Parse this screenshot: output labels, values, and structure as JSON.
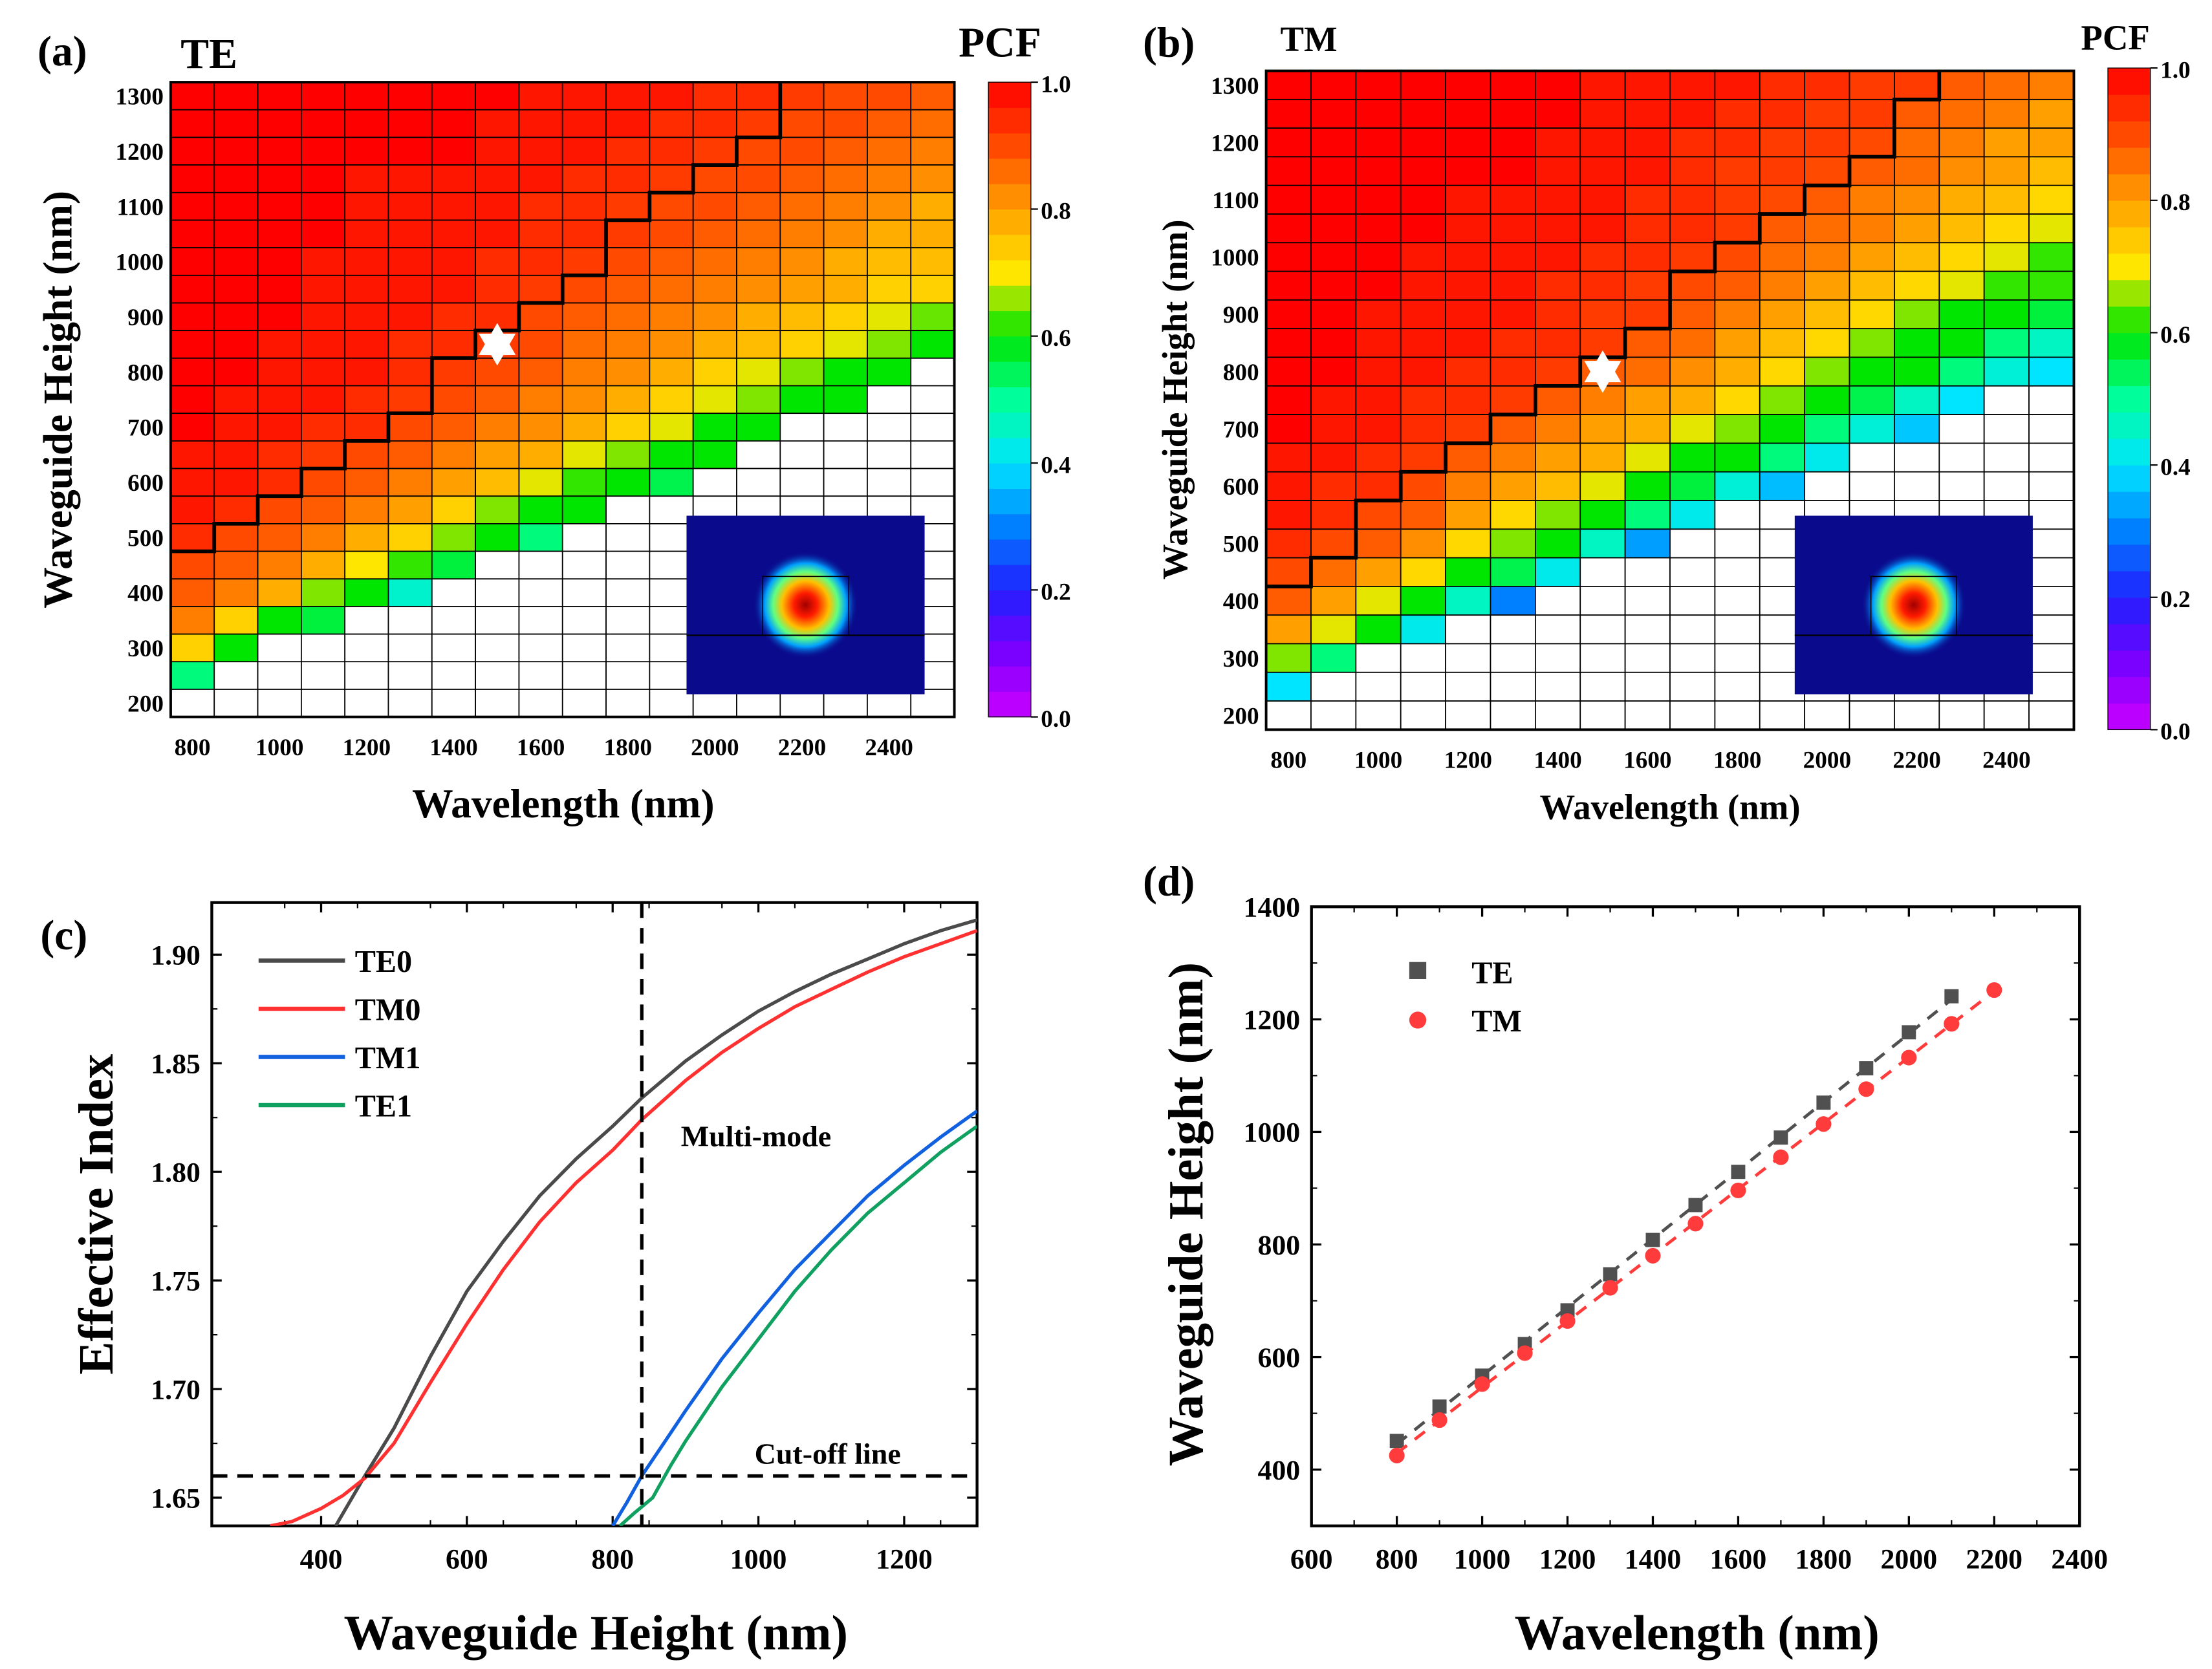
{
  "chart_data": [
    {
      "type": "heatmap",
      "panel_label": "(a)",
      "title": "TE",
      "colorbar_label": "PCF",
      "colorbar_ticks": [
        "0.0",
        "0.2",
        "0.4",
        "0.6",
        "0.8",
        "1.0"
      ],
      "clim": [
        0,
        1
      ],
      "xlabel": "Wavelength (nm)",
      "ylabel": "Waveguide Height (nm)",
      "xticks": [
        800,
        1000,
        1200,
        1400,
        1600,
        1800,
        2000,
        2200,
        2400
      ],
      "yticks": [
        200,
        300,
        400,
        500,
        600,
        700,
        800,
        900,
        1000,
        1100,
        1200,
        1300
      ],
      "x": [
        800,
        900,
        1000,
        1100,
        1200,
        1300,
        1400,
        1500,
        1600,
        1700,
        1800,
        1900,
        2000,
        2100,
        2200,
        2300,
        2400,
        2500
      ],
      "y": [
        1300,
        1250,
        1200,
        1150,
        1100,
        1050,
        1000,
        950,
        900,
        850,
        800,
        750,
        700,
        650,
        600,
        550,
        500,
        450,
        400,
        350,
        300,
        250,
        200
      ],
      "z_note": "rows listed top to bottom; missing trailing values are blank (white) cells",
      "z": [
        [
          1,
          1,
          1,
          1,
          1,
          1,
          1,
          1,
          0.97,
          0.97,
          0.97,
          0.97,
          0.94,
          0.94,
          0.92,
          0.9,
          0.9,
          0.88
        ],
        [
          1,
          1,
          1,
          1,
          1,
          1,
          1,
          0.97,
          0.97,
          0.97,
          0.97,
          0.94,
          0.94,
          0.92,
          0.9,
          0.9,
          0.88,
          0.86
        ],
        [
          1,
          1,
          1,
          1,
          1,
          1,
          1,
          0.97,
          0.97,
          0.97,
          0.94,
          0.94,
          0.92,
          0.9,
          0.9,
          0.88,
          0.86,
          0.84
        ],
        [
          1,
          1,
          1,
          1,
          0.97,
          0.97,
          0.97,
          0.97,
          0.97,
          0.94,
          0.94,
          0.92,
          0.9,
          0.9,
          0.88,
          0.86,
          0.84,
          0.82
        ],
        [
          1,
          1,
          1,
          1,
          0.97,
          0.97,
          0.97,
          0.97,
          0.94,
          0.94,
          0.92,
          0.9,
          0.9,
          0.88,
          0.86,
          0.84,
          0.82,
          0.78
        ],
        [
          1,
          1,
          1,
          1,
          0.97,
          0.97,
          0.97,
          0.97,
          0.94,
          0.94,
          0.92,
          0.9,
          0.88,
          0.86,
          0.84,
          0.82,
          0.78,
          0.78
        ],
        [
          1,
          1,
          1,
          0.97,
          0.97,
          0.97,
          0.97,
          0.94,
          0.94,
          0.92,
          0.9,
          0.88,
          0.86,
          0.84,
          0.82,
          0.78,
          0.76,
          0.76
        ],
        [
          1,
          1,
          1,
          0.97,
          0.97,
          0.97,
          0.97,
          0.94,
          0.92,
          0.9,
          0.88,
          0.86,
          0.84,
          0.82,
          0.8,
          0.78,
          0.73,
          0.73
        ],
        [
          1,
          1,
          1,
          0.97,
          0.97,
          0.97,
          0.94,
          0.94,
          0.9,
          0.88,
          0.86,
          0.84,
          0.82,
          0.78,
          0.76,
          0.73,
          0.69,
          0.64
        ],
        [
          1,
          1,
          0.97,
          0.97,
          0.97,
          0.94,
          0.94,
          0.92,
          0.9,
          0.86,
          0.84,
          0.82,
          0.78,
          0.76,
          0.73,
          0.69,
          0.65,
          0.6
        ],
        [
          1,
          1,
          0.97,
          0.97,
          0.97,
          0.94,
          0.92,
          0.9,
          0.88,
          0.84,
          0.82,
          0.78,
          0.73,
          0.69,
          0.65,
          0.6,
          0.6
        ],
        [
          1,
          0.97,
          0.97,
          0.97,
          0.94,
          0.92,
          0.9,
          0.88,
          0.84,
          0.82,
          0.78,
          0.73,
          0.69,
          0.65,
          0.6,
          0.6
        ],
        [
          1,
          0.97,
          0.97,
          0.94,
          0.94,
          0.9,
          0.88,
          0.84,
          0.82,
          0.78,
          0.73,
          0.69,
          0.6,
          0.6
        ],
        [
          0.97,
          0.97,
          0.94,
          0.92,
          0.9,
          0.88,
          0.84,
          0.8,
          0.78,
          0.69,
          0.65,
          0.6,
          0.6
        ],
        [
          0.97,
          0.97,
          0.94,
          0.9,
          0.88,
          0.84,
          0.8,
          0.76,
          0.69,
          0.62,
          0.6,
          0.55
        ],
        [
          0.97,
          0.94,
          0.9,
          0.88,
          0.84,
          0.8,
          0.73,
          0.65,
          0.6,
          0.6
        ],
        [
          0.94,
          0.9,
          0.88,
          0.84,
          0.78,
          0.73,
          0.65,
          0.6,
          0.52
        ],
        [
          0.9,
          0.88,
          0.84,
          0.78,
          0.7,
          0.62,
          0.56
        ],
        [
          0.88,
          0.84,
          0.78,
          0.65,
          0.6,
          0.45
        ],
        [
          0.84,
          0.73,
          0.6,
          0.56
        ],
        [
          0.73,
          0.6
        ],
        [
          0.52
        ],
        []
      ],
      "boundary": {
        "x": [
          800,
          900,
          1000,
          1100,
          1200,
          1300,
          1400,
          1500,
          1600,
          1700,
          1800,
          1900,
          2000,
          2100
        ],
        "y": [
          475,
          525,
          575,
          625,
          675,
          725,
          825,
          875,
          925,
          975,
          1075,
          1125,
          1175,
          1225
        ]
      },
      "marker": {
        "shape": "star",
        "x": 1500,
        "y": 850
      }
    },
    {
      "type": "heatmap",
      "panel_label": "(b)",
      "title": "TM",
      "colorbar_label": "PCF",
      "colorbar_ticks": [
        "0.0",
        "0.2",
        "0.4",
        "0.6",
        "0.8",
        "1.0"
      ],
      "clim": [
        0,
        1
      ],
      "xlabel": "Wavelength (nm)",
      "ylabel": "Waveguide Height (nm)",
      "xticks": [
        800,
        1000,
        1200,
        1400,
        1600,
        1800,
        2000,
        2200,
        2400
      ],
      "yticks": [
        200,
        300,
        400,
        500,
        600,
        700,
        800,
        900,
        1000,
        1100,
        1200,
        1300
      ],
      "x": [
        800,
        900,
        1000,
        1100,
        1200,
        1300,
        1400,
        1500,
        1600,
        1700,
        1800,
        1900,
        2000,
        2100,
        2200,
        2300,
        2400,
        2500
      ],
      "y": [
        1300,
        1250,
        1200,
        1150,
        1100,
        1050,
        1000,
        950,
        900,
        850,
        800,
        750,
        700,
        650,
        600,
        550,
        500,
        450,
        400,
        350,
        300,
        250,
        200
      ],
      "z_note": "rows listed top to bottom; missing trailing values are blank (white) cells",
      "z": [
        [
          1,
          1,
          1,
          1,
          1,
          1,
          1,
          0.97,
          0.97,
          0.97,
          0.97,
          0.94,
          0.94,
          0.92,
          0.92,
          0.88,
          0.86,
          0.84
        ],
        [
          1,
          1,
          1,
          1,
          1,
          1,
          1,
          0.97,
          0.97,
          0.97,
          0.94,
          0.94,
          0.92,
          0.92,
          0.88,
          0.86,
          0.84,
          0.8
        ],
        [
          1,
          1,
          1,
          1,
          1,
          1,
          0.97,
          0.97,
          0.97,
          0.94,
          0.94,
          0.92,
          0.92,
          0.9,
          0.86,
          0.84,
          0.8,
          0.8
        ],
        [
          1,
          1,
          1,
          1,
          1,
          1,
          0.97,
          0.97,
          0.97,
          0.94,
          0.92,
          0.92,
          0.9,
          0.88,
          0.86,
          0.82,
          0.8,
          0.76
        ],
        [
          1,
          1,
          1,
          1,
          0.97,
          0.97,
          0.97,
          0.97,
          0.94,
          0.94,
          0.92,
          0.9,
          0.88,
          0.84,
          0.82,
          0.78,
          0.76,
          0.72
        ],
        [
          1,
          1,
          1,
          1,
          0.97,
          0.97,
          0.97,
          0.97,
          0.94,
          0.94,
          0.92,
          0.88,
          0.86,
          0.84,
          0.8,
          0.76,
          0.72,
          0.69
        ],
        [
          1,
          1,
          1,
          0.97,
          0.97,
          0.97,
          0.97,
          0.94,
          0.94,
          0.92,
          0.9,
          0.86,
          0.84,
          0.8,
          0.76,
          0.72,
          0.69,
          0.62
        ],
        [
          1,
          1,
          1,
          0.97,
          0.97,
          0.97,
          0.94,
          0.94,
          0.92,
          0.9,
          0.88,
          0.84,
          0.8,
          0.76,
          0.72,
          0.69,
          0.62,
          0.62
        ],
        [
          1,
          1,
          0.97,
          0.97,
          0.97,
          0.97,
          0.94,
          0.92,
          0.92,
          0.88,
          0.84,
          0.8,
          0.76,
          0.72,
          0.65,
          0.6,
          0.6,
          0.56
        ],
        [
          1,
          1,
          0.97,
          0.97,
          0.97,
          0.94,
          0.94,
          0.92,
          0.88,
          0.86,
          0.8,
          0.76,
          0.72,
          0.65,
          0.6,
          0.6,
          0.52,
          0.46
        ],
        [
          1,
          1,
          0.97,
          0.97,
          0.94,
          0.94,
          0.92,
          0.88,
          0.86,
          0.82,
          0.78,
          0.72,
          0.65,
          0.6,
          0.6,
          0.52,
          0.44,
          0.4
        ],
        [
          1,
          0.97,
          0.97,
          0.94,
          0.94,
          0.92,
          0.88,
          0.84,
          0.8,
          0.78,
          0.72,
          0.65,
          0.6,
          0.55,
          0.46,
          0.4
        ],
        [
          1,
          0.97,
          0.97,
          0.94,
          0.92,
          0.88,
          0.84,
          0.8,
          0.78,
          0.69,
          0.65,
          0.6,
          0.52,
          0.44,
          0.37
        ],
        [
          0.97,
          0.97,
          0.94,
          0.92,
          0.88,
          0.84,
          0.8,
          0.78,
          0.69,
          0.6,
          0.6,
          0.52,
          0.42
        ],
        [
          0.97,
          0.94,
          0.94,
          0.9,
          0.84,
          0.8,
          0.76,
          0.69,
          0.6,
          0.56,
          0.44,
          0.36
        ],
        [
          0.97,
          0.94,
          0.9,
          0.88,
          0.8,
          0.72,
          0.65,
          0.6,
          0.52,
          0.42
        ],
        [
          0.94,
          0.9,
          0.88,
          0.82,
          0.72,
          0.65,
          0.6,
          0.46,
          0.33
        ],
        [
          0.9,
          0.86,
          0.8,
          0.72,
          0.6,
          0.55,
          0.42
        ],
        [
          0.88,
          0.8,
          0.69,
          0.6,
          0.46,
          0.3
        ],
        [
          0.8,
          0.69,
          0.6,
          0.42
        ],
        [
          0.65,
          0.52
        ],
        [
          0.4
        ],
        []
      ],
      "boundary": {
        "x": [
          800,
          900,
          1000,
          1100,
          1200,
          1300,
          1400,
          1500,
          1600,
          1700,
          1800,
          1900,
          2000,
          2100,
          2200
        ],
        "y": [
          425,
          475,
          575,
          625,
          675,
          725,
          775,
          825,
          875,
          975,
          1025,
          1075,
          1125,
          1175,
          1275
        ]
      },
      "marker": {
        "shape": "star",
        "x": 1500,
        "y": 800
      }
    },
    {
      "type": "line",
      "panel_label": "(c)",
      "xlabel": "Waveguide Height (nm)",
      "ylabel": "Effective Index",
      "xlim": [
        250,
        1300
      ],
      "ylim": [
        1.637,
        1.924
      ],
      "xticks": [
        400,
        600,
        800,
        1000,
        1200
      ],
      "yticks": [
        "1.65",
        "1.70",
        "1.75",
        "1.80",
        "1.85",
        "1.90"
      ],
      "legend_position": "top-left",
      "series": [
        {
          "name": "TE0",
          "color": "#4a4a4a",
          "x": [
            420,
            460,
            500,
            550,
            600,
            650,
            700,
            750,
            800,
            840,
            900,
            950,
            1000,
            1050,
            1100,
            1150,
            1200,
            1250,
            1300
          ],
          "y": [
            1.637,
            1.66,
            1.682,
            1.715,
            1.745,
            1.768,
            1.789,
            1.806,
            1.821,
            1.834,
            1.851,
            1.863,
            1.874,
            1.883,
            1.891,
            1.898,
            1.905,
            1.911,
            1.916
          ]
        },
        {
          "name": "TM0",
          "color": "#ff3030",
          "x": [
            330,
            360,
            400,
            430,
            460,
            500,
            550,
            600,
            650,
            700,
            750,
            800,
            840,
            900,
            950,
            1000,
            1050,
            1100,
            1150,
            1200,
            1250,
            1300
          ],
          "y": [
            1.637,
            1.639,
            1.645,
            1.651,
            1.659,
            1.675,
            1.703,
            1.73,
            1.755,
            1.777,
            1.795,
            1.81,
            1.824,
            1.842,
            1.855,
            1.866,
            1.876,
            1.884,
            1.892,
            1.899,
            1.905,
            1.911
          ]
        },
        {
          "name": "TM1",
          "color": "#1060e0",
          "x": [
            800,
            820,
            840,
            870,
            900,
            950,
            1000,
            1050,
            1100,
            1150,
            1200,
            1250,
            1300
          ],
          "y": [
            1.637,
            1.648,
            1.66,
            1.675,
            1.69,
            1.714,
            1.735,
            1.755,
            1.772,
            1.789,
            1.803,
            1.816,
            1.828
          ]
        },
        {
          "name": "TE1",
          "color": "#10a060",
          "x": [
            810,
            830,
            855,
            880,
            900,
            950,
            1000,
            1050,
            1100,
            1150,
            1200,
            1250,
            1300
          ],
          "y": [
            1.637,
            1.643,
            1.65,
            1.665,
            1.676,
            1.701,
            1.723,
            1.745,
            1.764,
            1.781,
            1.795,
            1.809,
            1.821
          ]
        }
      ],
      "reference_lines": {
        "vertical_x": 840,
        "horizontal_y": 1.66
      },
      "annotations": {
        "multimode": "Multi-mode",
        "cutoff": "Cut-off line"
      }
    },
    {
      "type": "scatter",
      "panel_label": "(d)",
      "xlabel": "Wavelength (nm)",
      "ylabel": "Waveguide Height (nm)",
      "xlim": [
        600,
        2400
      ],
      "ylim": [
        300,
        1400
      ],
      "xticks": [
        600,
        800,
        1000,
        1200,
        1400,
        1600,
        1800,
        2000,
        2200,
        2400
      ],
      "yticks": [
        400,
        600,
        800,
        1000,
        1200,
        1400
      ],
      "legend_position": "top-left",
      "series": [
        {
          "name": "TE",
          "marker": "square",
          "color": "#505050",
          "x": [
            800,
            900,
            1000,
            1100,
            1200,
            1300,
            1400,
            1500,
            1600,
            1700,
            1800,
            1900,
            2000,
            2100
          ],
          "y": [
            451,
            512,
            567,
            623,
            683,
            747,
            808,
            870,
            929,
            990,
            1052,
            1113,
            1177,
            1241
          ]
        },
        {
          "name": "TM",
          "marker": "circle",
          "color": "#ff3b3b",
          "x": [
            800,
            900,
            1000,
            1100,
            1200,
            1300,
            1400,
            1500,
            1600,
            1700,
            1800,
            1900,
            2000,
            2100,
            2200
          ],
          "y": [
            425,
            488,
            552,
            607,
            664,
            723,
            780,
            837,
            896,
            955,
            1014,
            1076,
            1132,
            1192,
            1252
          ]
        }
      ]
    }
  ]
}
